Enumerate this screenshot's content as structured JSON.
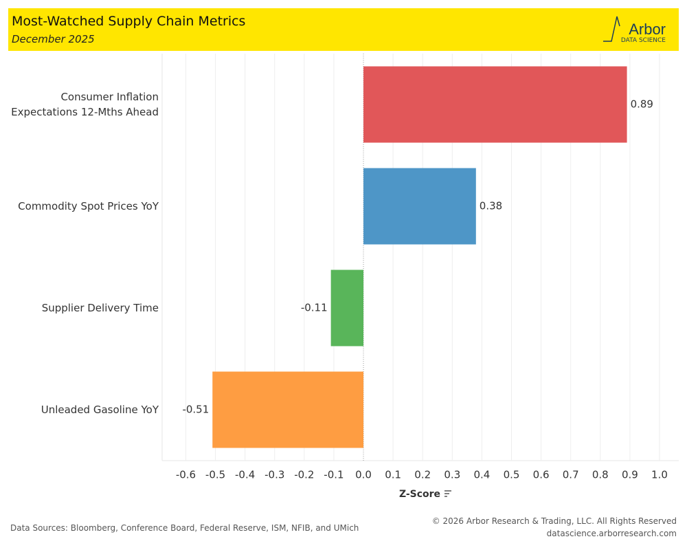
{
  "header": {
    "title": "Most-Watched Supply Chain Metrics",
    "subtitle": "December 2025",
    "logo": "Arbor",
    "logo_sub": "DATA SCIENCE"
  },
  "chart_data": {
    "type": "bar",
    "orientation": "horizontal",
    "categories": [
      "Consumer Inflation\nExpectations 12-Mths Ahead",
      "Commodity Spot Prices YoY",
      "Supplier Delivery Time",
      "Unleaded Gasoline YoY"
    ],
    "values": [
      0.89,
      0.38,
      -0.11,
      -0.51
    ],
    "colors": [
      "#e15759",
      "#4e96c7",
      "#59b55a",
      "#fe9d42"
    ],
    "x_label": "Z-Score",
    "xlim": [
      -0.68,
      1.065
    ],
    "xticks": [
      -0.6,
      -0.5,
      -0.4,
      -0.3,
      -0.2,
      -0.1,
      {
        "value": 0,
        "label": "0.0"
      },
      0.1,
      0.2,
      0.3,
      0.4,
      0.5,
      0.6,
      0.7,
      0.8,
      0.9,
      {
        "value": 1,
        "label": "1.0"
      }
    ],
    "grid": true
  },
  "footer": {
    "sources": "Data Sources: Bloomberg, Conference Board, Federal Reserve, ISM, NFIB, and UMich",
    "copyright": "© 2026 Arbor Research & Trading, LLC. All Rights Reserved",
    "url": "datascience.arborresearch.com"
  }
}
